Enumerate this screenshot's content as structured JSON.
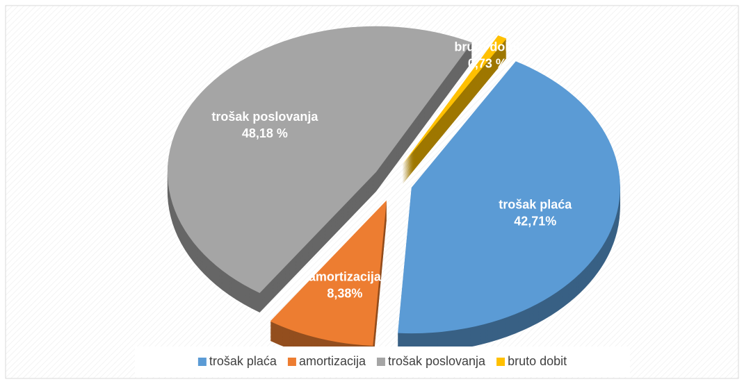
{
  "chart_data": {
    "type": "pie",
    "categories": [
      "trošak plaća",
      "amortizacija",
      "trošak poslovanja",
      "bruto dobit"
    ],
    "values": [
      42.71,
      8.38,
      48.18,
      0.73
    ],
    "value_labels": [
      "42,71%",
      "8,38%",
      "48,18 %",
      "0,73 %"
    ],
    "colors": [
      "#5b9bd5",
      "#ed7d31",
      "#a5a5a5",
      "#ffc000"
    ],
    "legend": "bottom"
  }
}
